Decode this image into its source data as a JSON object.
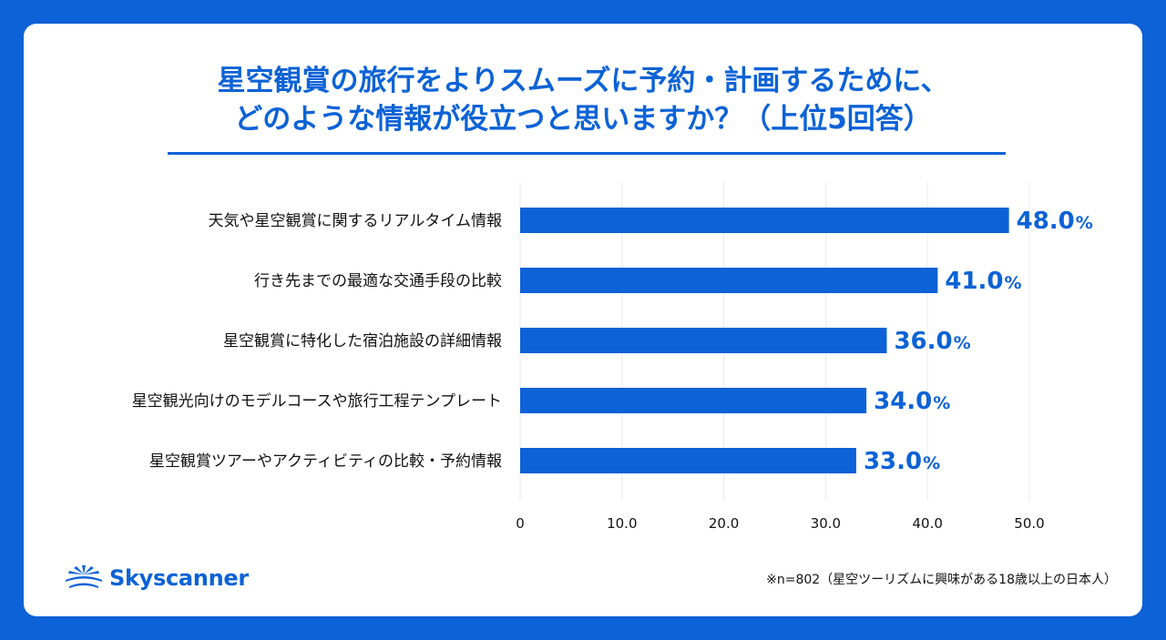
{
  "title": {
    "line1": "星空観賞の旅行をよりスムーズに予約・計画するために、",
    "line2": "どのような情報が役立つと思いますか？（上位5回答）"
  },
  "brand": {
    "name": "Skyscanner",
    "color": "#0c62d6",
    "icon": "sunrise-logo-icon"
  },
  "footnote": "※n=802（星空ツーリズムに興味がある18歳以上の日本人）",
  "chart_data": {
    "type": "bar",
    "orientation": "horizontal",
    "categories": [
      "天気や星空観賞に関するリアルタイム情報",
      "行き先までの最適な交通手段の比較",
      "星空観賞に特化した宿泊施設の詳細情報",
      "星空観光向けのモデルコースや旅行工程テンプレート",
      "星空観賞ツアーやアクティビティの比較・予約情報"
    ],
    "values": [
      48.0,
      41.0,
      36.0,
      34.0,
      33.0
    ],
    "value_labels": [
      "48.0",
      "41.0",
      "36.0",
      "34.0",
      "33.0"
    ],
    "value_suffix": "%",
    "xlim": [
      0,
      50
    ],
    "xticks": [
      "0",
      "10.0",
      "20.0",
      "30.0",
      "40.0",
      "50.0"
    ],
    "grid": true,
    "bar_color": "#0c62d6"
  }
}
